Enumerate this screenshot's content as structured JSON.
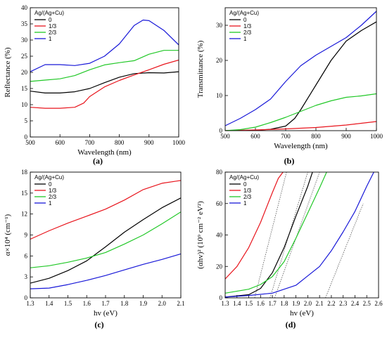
{
  "chart_data": [
    {
      "type": "line",
      "panel_label": "(a)",
      "xlabel": "Wavelength (nm)",
      "ylabel": "Reflectance (%)",
      "xlim": [
        500,
        1000
      ],
      "ylim": [
        0,
        40
      ],
      "xticks": [
        "500",
        "600",
        "700",
        "800",
        "900",
        "1000"
      ],
      "yticks": [
        "0",
        "5",
        "10",
        "15",
        "20",
        "25",
        "30",
        "35",
        "40"
      ],
      "legend_title": "Ag/(Ag+Cu)",
      "legend_position": "top-left",
      "series": [
        {
          "name": "0",
          "color": "#000000",
          "x": [
            500,
            550,
            600,
            650,
            700,
            750,
            800,
            850,
            900,
            950,
            1000
          ],
          "y": [
            14.2,
            13.6,
            13.6,
            14,
            15,
            16.8,
            18.5,
            19.6,
            19.9,
            19.8,
            20.2
          ]
        },
        {
          "name": "1/3",
          "color": "#e8141c",
          "x": [
            500,
            550,
            600,
            650,
            680,
            700,
            750,
            800,
            850,
            900,
            950,
            1000
          ],
          "y": [
            9.2,
            8.9,
            8.9,
            9.2,
            10.5,
            12.5,
            15.5,
            17.5,
            19.2,
            20.8,
            22.5,
            23.8
          ]
        },
        {
          "name": "2/3",
          "color": "#21c827",
          "x": [
            500,
            550,
            600,
            650,
            700,
            750,
            800,
            850,
            900,
            950,
            1000
          ],
          "y": [
            17.2,
            17.6,
            18,
            19,
            20.8,
            22.3,
            23,
            23.6,
            25.6,
            26.8,
            26.8
          ]
        },
        {
          "name": "1",
          "color": "#1818d8",
          "x": [
            500,
            550,
            600,
            650,
            700,
            750,
            800,
            850,
            880,
            900,
            950,
            1000
          ],
          "y": [
            20.2,
            22.4,
            22.4,
            22.1,
            22.8,
            25,
            28.8,
            34.5,
            36.2,
            36,
            33,
            28.5
          ]
        }
      ]
    },
    {
      "type": "line",
      "panel_label": "(b)",
      "xlabel": "Wavelength (nm)",
      "ylabel": "Transmittance (%)",
      "xlim": [
        500,
        1000
      ],
      "ylim": [
        0,
        35
      ],
      "xticks": [
        "500",
        "600",
        "700",
        "800",
        "900",
        "1000"
      ],
      "yticks": [
        "0",
        "10",
        "20",
        "30"
      ],
      "legend_title": "Ag/(Ag+Cu)",
      "legend_position": "top-left",
      "series": [
        {
          "name": "0",
          "color": "#000000",
          "x": [
            500,
            600,
            650,
            700,
            730,
            750,
            800,
            850,
            900,
            950,
            1000
          ],
          "y": [
            0,
            0.1,
            0.4,
            1.3,
            3.5,
            6,
            13,
            20,
            25.5,
            28.5,
            31
          ]
        },
        {
          "name": "1/3",
          "color": "#e8141c",
          "x": [
            500,
            600,
            700,
            800,
            900,
            1000
          ],
          "y": [
            0,
            0.2,
            0.5,
            0.9,
            1.6,
            2.6
          ]
        },
        {
          "name": "2/3",
          "color": "#21c827",
          "x": [
            500,
            550,
            600,
            650,
            700,
            750,
            800,
            850,
            900,
            950,
            1000
          ],
          "y": [
            0,
            0.3,
            1,
            2.3,
            3.8,
            5.5,
            7.2,
            8.5,
            9.5,
            9.9,
            10.5
          ]
        },
        {
          "name": "1",
          "color": "#1818d8",
          "x": [
            500,
            550,
            600,
            650,
            700,
            750,
            800,
            850,
            900,
            950,
            1000
          ],
          "y": [
            1.4,
            3.5,
            6,
            9,
            14,
            18.5,
            21.5,
            24,
            26.5,
            30,
            34
          ]
        }
      ]
    },
    {
      "type": "line",
      "panel_label": "(c)",
      "xlabel": "hv (eV)",
      "ylabel": "α×10⁴ (cm⁻¹)",
      "xlim": [
        1.3,
        2.1
      ],
      "ylim": [
        0,
        18
      ],
      "xticks": [
        "1.3",
        "1.4",
        "1.5",
        "1.6",
        "1.7",
        "1.8",
        "1.9",
        "2.0",
        "2.1"
      ],
      "yticks": [
        "0",
        "3",
        "6",
        "9",
        "12",
        "15",
        "18"
      ],
      "legend_title": "Ag/(Ag+Cu)",
      "legend_position": "top-left",
      "series": [
        {
          "name": "0",
          "color": "#000000",
          "x": [
            1.3,
            1.4,
            1.5,
            1.6,
            1.7,
            1.8,
            1.9,
            2.0,
            2.1
          ],
          "y": [
            2.1,
            2.8,
            3.9,
            5.3,
            7.3,
            9.4,
            11.2,
            12.9,
            14.3
          ]
        },
        {
          "name": "1/3",
          "color": "#e8141c",
          "x": [
            1.3,
            1.4,
            1.5,
            1.6,
            1.7,
            1.8,
            1.9,
            2.0,
            2.1
          ],
          "y": [
            8.4,
            9.6,
            10.7,
            11.7,
            12.7,
            14,
            15.5,
            16.4,
            16.8
          ]
        },
        {
          "name": "2/3",
          "color": "#21c827",
          "x": [
            1.3,
            1.4,
            1.5,
            1.6,
            1.7,
            1.8,
            1.9,
            2.0,
            2.1
          ],
          "y": [
            4.3,
            4.6,
            5.1,
            5.7,
            6.5,
            7.7,
            9,
            10.6,
            12.3
          ]
        },
        {
          "name": "1",
          "color": "#1818d8",
          "x": [
            1.3,
            1.4,
            1.5,
            1.6,
            1.7,
            1.8,
            1.9,
            2.0,
            2.1
          ],
          "y": [
            1.3,
            1.4,
            1.9,
            2.5,
            3.2,
            4,
            4.8,
            5.5,
            6.3
          ]
        }
      ]
    },
    {
      "type": "line",
      "panel_label": "(d)",
      "xlabel": "hv (eV)",
      "ylabel": "(αhv)² (10⁹ cm⁻² eV²)",
      "xlim": [
        1.3,
        2.6
      ],
      "ylim": [
        0,
        80
      ],
      "xticks": [
        "1.3",
        "1.4",
        "1.5",
        "1.6",
        "1.7",
        "1.8",
        "1.9",
        "2.0",
        "2.1",
        "2.2",
        "2.3",
        "2.4",
        "2.5",
        "2.6"
      ],
      "yticks": [
        "0",
        "20",
        "40",
        "60",
        "80"
      ],
      "legend_title": "Ag/(Ag+Cu)",
      "legend_position": "top-left",
      "series": [
        {
          "name": "0",
          "color": "#000000",
          "x": [
            1.3,
            1.5,
            1.6,
            1.7,
            1.8,
            1.9,
            2.0,
            2.04
          ],
          "y": [
            0.5,
            2,
            6,
            16,
            32,
            52,
            71,
            80
          ]
        },
        {
          "name": "1/3",
          "color": "#e8141c",
          "x": [
            1.3,
            1.4,
            1.5,
            1.6,
            1.7,
            1.75,
            1.79
          ],
          "y": [
            12,
            20,
            32,
            48,
            67,
            76,
            80
          ]
        },
        {
          "name": "2/3",
          "color": "#21c827",
          "x": [
            1.3,
            1.5,
            1.6,
            1.7,
            1.8,
            1.9,
            2.0,
            2.1,
            2.16
          ],
          "y": [
            3,
            5.5,
            8.5,
            13.5,
            23,
            38,
            54,
            70,
            80
          ]
        },
        {
          "name": "1",
          "color": "#1818d8",
          "x": [
            1.3,
            1.5,
            1.7,
            1.9,
            2.0,
            2.1,
            2.2,
            2.3,
            2.4,
            2.5,
            2.56
          ],
          "y": [
            0.5,
            1.5,
            3,
            8,
            14,
            20,
            30,
            42,
            55,
            71,
            80
          ]
        }
      ],
      "tangents": [
        {
          "x": [
            1.55,
            1.82
          ],
          "y": [
            0,
            80
          ]
        },
        {
          "x": [
            1.68,
            2.0
          ],
          "y": [
            0,
            80
          ]
        },
        {
          "x": [
            1.72,
            2.1
          ],
          "y": [
            0,
            80
          ]
        },
        {
          "x": [
            2.15,
            2.47
          ],
          "y": [
            0,
            60
          ]
        }
      ]
    }
  ]
}
